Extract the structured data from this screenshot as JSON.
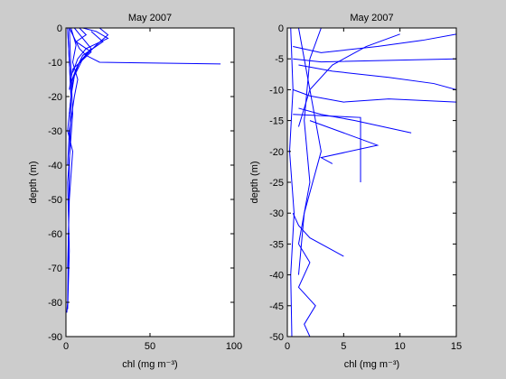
{
  "chart_data": [
    {
      "type": "line",
      "title": "May 2007",
      "xlabel": "chl (mg m⁻³)",
      "ylabel": "depth (m)",
      "color": "#0000ff",
      "xlim": [
        0,
        100
      ],
      "xticks": [
        0,
        50,
        100
      ],
      "ylim": [
        -90,
        0
      ],
      "yticks": [
        -90,
        -80,
        -70,
        -60,
        -50,
        -40,
        -30,
        -20,
        -10,
        0
      ],
      "series": [
        {
          "x": [
            2,
            5,
            8,
            12,
            20,
            92
          ],
          "values": [
            0,
            -3,
            -6,
            -8,
            -10,
            -10.5
          ]
        },
        {
          "x": [
            1,
            3,
            2,
            1.5,
            1,
            0.5
          ],
          "values": [
            0,
            -20,
            -40,
            -60,
            -80,
            -83
          ]
        },
        {
          "x": [
            5,
            10,
            15,
            8,
            4,
            2
          ],
          "values": [
            0,
            -3,
            -6,
            -10,
            -15,
            -25
          ]
        },
        {
          "x": [
            20,
            25,
            18,
            10,
            5,
            3
          ],
          "values": [
            0,
            -2,
            -5,
            -9,
            -14,
            -20
          ]
        },
        {
          "x": [
            3,
            6,
            4,
            7,
            5,
            2,
            1
          ],
          "values": [
            0,
            -5,
            -10,
            -15,
            -20,
            -30,
            -40
          ]
        },
        {
          "x": [
            8,
            12,
            6,
            15,
            4,
            2
          ],
          "values": [
            0,
            -2,
            -4,
            -7,
            -12,
            -18
          ]
        },
        {
          "x": [
            1,
            2,
            3,
            1,
            4,
            2,
            1
          ],
          "values": [
            0,
            -10,
            -20,
            -30,
            -36,
            -50,
            -70
          ]
        },
        {
          "x": [
            15,
            22,
            10,
            6,
            3
          ],
          "values": [
            -1,
            -4,
            -8,
            -12,
            -16
          ]
        },
        {
          "x": [
            2,
            4,
            1,
            2,
            1
          ],
          "values": [
            0,
            -25,
            -45,
            -65,
            -82
          ]
        },
        {
          "x": [
            10,
            18,
            25,
            12,
            7,
            4
          ],
          "values": [
            0,
            -1,
            -3,
            -6,
            -9,
            -13
          ]
        }
      ]
    },
    {
      "type": "line",
      "title": "May 2007",
      "xlabel": "chl (mg m⁻³)",
      "ylabel": "depth (m)",
      "color": "#0000ff",
      "xlim": [
        0,
        15
      ],
      "xticks": [
        0,
        5,
        10,
        15
      ],
      "ylim": [
        -50,
        0
      ],
      "yticks": [
        -50,
        -45,
        -40,
        -35,
        -30,
        -25,
        -20,
        -15,
        -10,
        -5,
        0
      ],
      "series": [
        {
          "x": [
            0.5,
            3,
            8,
            12,
            15
          ],
          "values": [
            -3,
            -4,
            -3,
            -2,
            -1
          ]
        },
        {
          "x": [
            1,
            4,
            9,
            13,
            15
          ],
          "values": [
            -6,
            -7,
            -8,
            -9,
            -10
          ]
        },
        {
          "x": [
            0.5,
            2,
            5,
            9,
            15
          ],
          "values": [
            -10,
            -11,
            -12,
            -11.5,
            -12
          ]
        },
        {
          "x": [
            1,
            3,
            6,
            11
          ],
          "values": [
            -13,
            -14,
            -15,
            -17
          ]
        },
        {
          "x": [
            0.5,
            6.5,
            6.5
          ],
          "values": [
            -14,
            -14.5,
            -25
          ]
        },
        {
          "x": [
            1,
            2,
            3,
            1.5,
            1
          ],
          "values": [
            0,
            -10,
            -20,
            -30,
            -40
          ]
        },
        {
          "x": [
            0.5,
            1,
            2,
            4,
            5
          ],
          "values": [
            -30,
            -32,
            -34,
            -36,
            -37
          ]
        },
        {
          "x": [
            3,
            2,
            1.5,
            2,
            1
          ],
          "values": [
            0,
            -5,
            -15,
            -25,
            -35
          ]
        },
        {
          "x": [
            10,
            7,
            4,
            2,
            1
          ],
          "values": [
            -1,
            -3,
            -6,
            -10,
            -16
          ]
        },
        {
          "x": [
            1,
            2,
            1,
            2.5,
            1.5,
            2
          ],
          "values": [
            -35,
            -38,
            -42,
            -45,
            -48,
            -50
          ]
        },
        {
          "x": [
            0.5,
            3,
            15
          ],
          "values": [
            -5,
            -5.5,
            -5
          ]
        },
        {
          "x": [
            2,
            5,
            8,
            3,
            4
          ],
          "values": [
            -15,
            -17,
            -19,
            -21,
            -22
          ]
        },
        {
          "x": [
            0.3,
            0.5,
            0.2,
            0.6,
            0.3,
            0.4
          ],
          "values": [
            0,
            -10,
            -20,
            -30,
            -40,
            -50
          ]
        }
      ]
    }
  ]
}
